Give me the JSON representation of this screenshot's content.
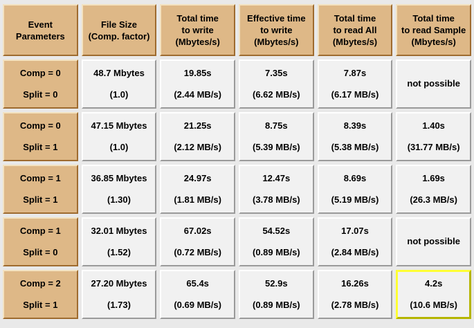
{
  "colors": {
    "page_background": "#e9e9e9",
    "header_fill": "#deb887",
    "header_bevel_light": "#f3e2c0",
    "header_bevel_dark": "#9e6b2f",
    "cell_fill": "#f1f1f1",
    "cell_bevel_light": "#ffffff",
    "cell_bevel_dark": "#9a9a9a",
    "selected_bevel_light": "#ffff33",
    "selected_bevel_dark": "#b5b500",
    "text": "#000000"
  },
  "table": {
    "headers": [
      {
        "label": "Event\nParameters"
      },
      {
        "label": "File Size\n(Comp. factor)"
      },
      {
        "label": "Total time\nto write\n(Mbytes/s)"
      },
      {
        "label": "Effective time\nto write\n(Mbytes/s)"
      },
      {
        "label": "Total time\nto read All\n(Mbytes/s)"
      },
      {
        "label": "Total time\nto read Sample\n(Mbytes/s)"
      }
    ],
    "rows": [
      {
        "param_line1": "Comp  = 0",
        "param_line2": "Split = 0",
        "file_size": {
          "line1": "48.7 Mbytes",
          "line2": "(1.0)"
        },
        "write_total": {
          "line1": "19.85s",
          "line2": "(2.44 MB/s)"
        },
        "write_effective": {
          "line1": "7.35s",
          "line2": "(6.62 MB/s)"
        },
        "read_all": {
          "line1": "7.87s",
          "line2": "(6.17 MB/s)"
        },
        "read_sample": {
          "line1": "not possible",
          "line2": ""
        }
      },
      {
        "param_line1": "Comp  = 0",
        "param_line2": "Split = 1",
        "file_size": {
          "line1": "47.15 Mbytes",
          "line2": "(1.0)"
        },
        "write_total": {
          "line1": "21.25s",
          "line2": "(2.12 MB/s)"
        },
        "write_effective": {
          "line1": "8.75s",
          "line2": "(5.39 MB/s)"
        },
        "read_all": {
          "line1": "8.39s",
          "line2": "(5.38 MB/s)"
        },
        "read_sample": {
          "line1": "1.40s",
          "line2": "(31.77 MB/s)"
        }
      },
      {
        "param_line1": "Comp  = 1",
        "param_line2": "Split = 1",
        "file_size": {
          "line1": "36.85 Mbytes",
          "line2": "(1.30)"
        },
        "write_total": {
          "line1": "24.97s",
          "line2": "(1.81 MB/s)"
        },
        "write_effective": {
          "line1": "12.47s",
          "line2": "(3.78 MB/s)"
        },
        "read_all": {
          "line1": "8.69s",
          "line2": "(5.19 MB/s)"
        },
        "read_sample": {
          "line1": "1.69s",
          "line2": "(26.3 MB/s)"
        }
      },
      {
        "param_line1": "Comp  = 1",
        "param_line2": "Split = 0",
        "file_size": {
          "line1": "32.01 Mbytes",
          "line2": "(1.52)"
        },
        "write_total": {
          "line1": "67.02s",
          "line2": "(0.72 MB/s)"
        },
        "write_effective": {
          "line1": "54.52s",
          "line2": "(0.89 MB/s)"
        },
        "read_all": {
          "line1": "17.07s",
          "line2": "(2.84 MB/s)"
        },
        "read_sample": {
          "line1": "not possible",
          "line2": ""
        }
      },
      {
        "param_line1": "Comp  = 2",
        "param_line2": "Split = 1",
        "file_size": {
          "line1": "27.20 Mbytes",
          "line2": "(1.73)"
        },
        "write_total": {
          "line1": "65.4s",
          "line2": "(0.69 MB/s)"
        },
        "write_effective": {
          "line1": "52.9s",
          "line2": "(0.89 MB/s)"
        },
        "read_all": {
          "line1": "16.26s",
          "line2": "(2.78 MB/s)"
        },
        "read_sample": {
          "line1": "4.2s",
          "line2": "(10.6 MB/s)"
        }
      }
    ]
  }
}
